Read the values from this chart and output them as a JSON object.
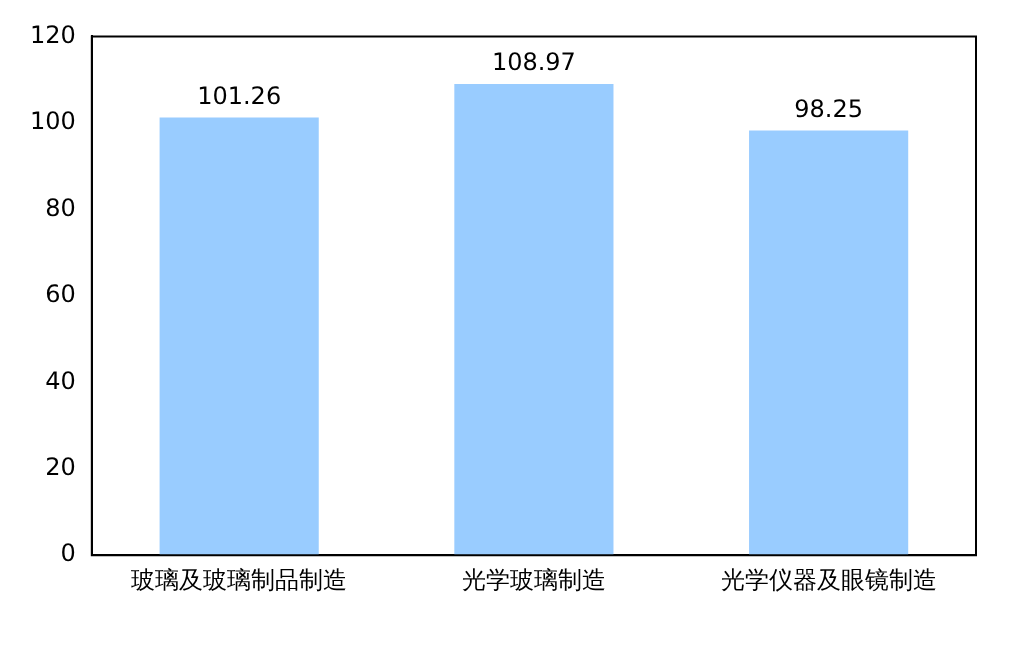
{
  "chart_data": {
    "type": "bar",
    "categories": [
      "玻璃及玻璃制品制造",
      "光学玻璃制造",
      "光学仪器及眼镜制造"
    ],
    "values": [
      101.26,
      108.97,
      98.25
    ],
    "color": "#99ccff",
    "ylim": [
      0,
      120
    ],
    "yticks": [
      0,
      20,
      40,
      60,
      80,
      100,
      120
    ],
    "grid": false,
    "legend": false,
    "data_labels": true
  }
}
